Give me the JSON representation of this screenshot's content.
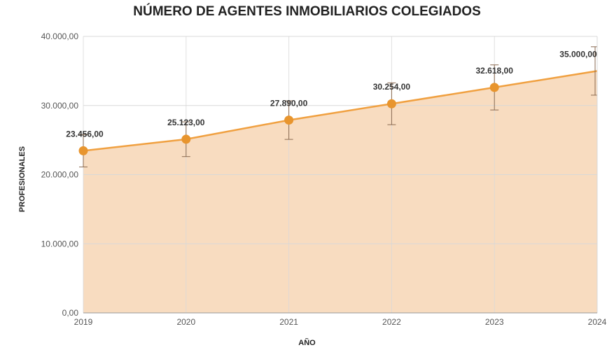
{
  "chart_data": {
    "type": "area",
    "title": "NÚMERO DE AGENTES INMOBILIARIOS COLEGIADOS",
    "xlabel": "AÑO",
    "ylabel": "PROFESIONALES",
    "categories": [
      "2019",
      "2020",
      "2021",
      "2022",
      "2023",
      "2024"
    ],
    "series": [
      {
        "name": "Profesionales",
        "values": [
          23456,
          25123,
          27890,
          30254,
          32618,
          35000
        ]
      }
    ],
    "data_labels": [
      "23.456,00",
      "25.123,00",
      "27.890,00",
      "30.254,00",
      "32.618,00",
      "35.000,00"
    ],
    "error_bars_percent": 10,
    "ylim": [
      0,
      40000
    ],
    "yticks": [
      0,
      10000,
      20000,
      30000,
      40000
    ],
    "ytick_labels": [
      "0,00",
      "10.000,00",
      "20.000,00",
      "30.000,00",
      "40.000,00"
    ],
    "grid": true,
    "colors": {
      "line": "#f0a040",
      "fill": "#f8dcc0",
      "marker": "#e8952e",
      "error": "#8a6a50",
      "grid": "#d8d8d8"
    }
  }
}
